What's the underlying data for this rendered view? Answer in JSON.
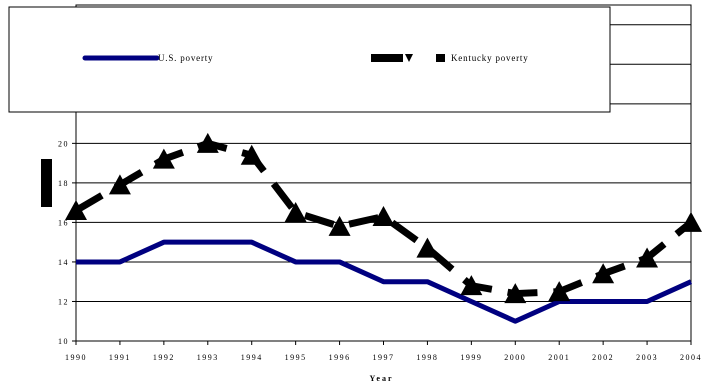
{
  "chart_data": {
    "type": "line",
    "title": "",
    "xlabel": "Year",
    "ylabel": "",
    "x": [
      "1990",
      "1991",
      "1992",
      "1993",
      "1994",
      "1995",
      "1996",
      "1997",
      "1998",
      "1999",
      "2000",
      "2001",
      "2002",
      "2003",
      "2004"
    ],
    "ylim": [
      10,
      27
    ],
    "yticks": [
      10,
      12,
      14,
      16,
      18,
      20
    ],
    "grid": true,
    "legend_position": "top",
    "series": [
      {
        "name": "U.S. poverty",
        "color": "#000080",
        "style": "solid",
        "marker": "none",
        "values": [
          14,
          14,
          15,
          15,
          15,
          14,
          14,
          13,
          13,
          12,
          11,
          12,
          12,
          12,
          13
        ]
      },
      {
        "name": "Kentucky poverty",
        "color": "#000000",
        "style": "dashed",
        "marker": "triangle",
        "values": [
          16.6,
          17.9,
          19.2,
          20.0,
          19.4,
          16.5,
          15.8,
          16.3,
          14.7,
          12.8,
          12.4,
          12.5,
          13.4,
          14.2,
          16.0
        ]
      }
    ]
  }
}
